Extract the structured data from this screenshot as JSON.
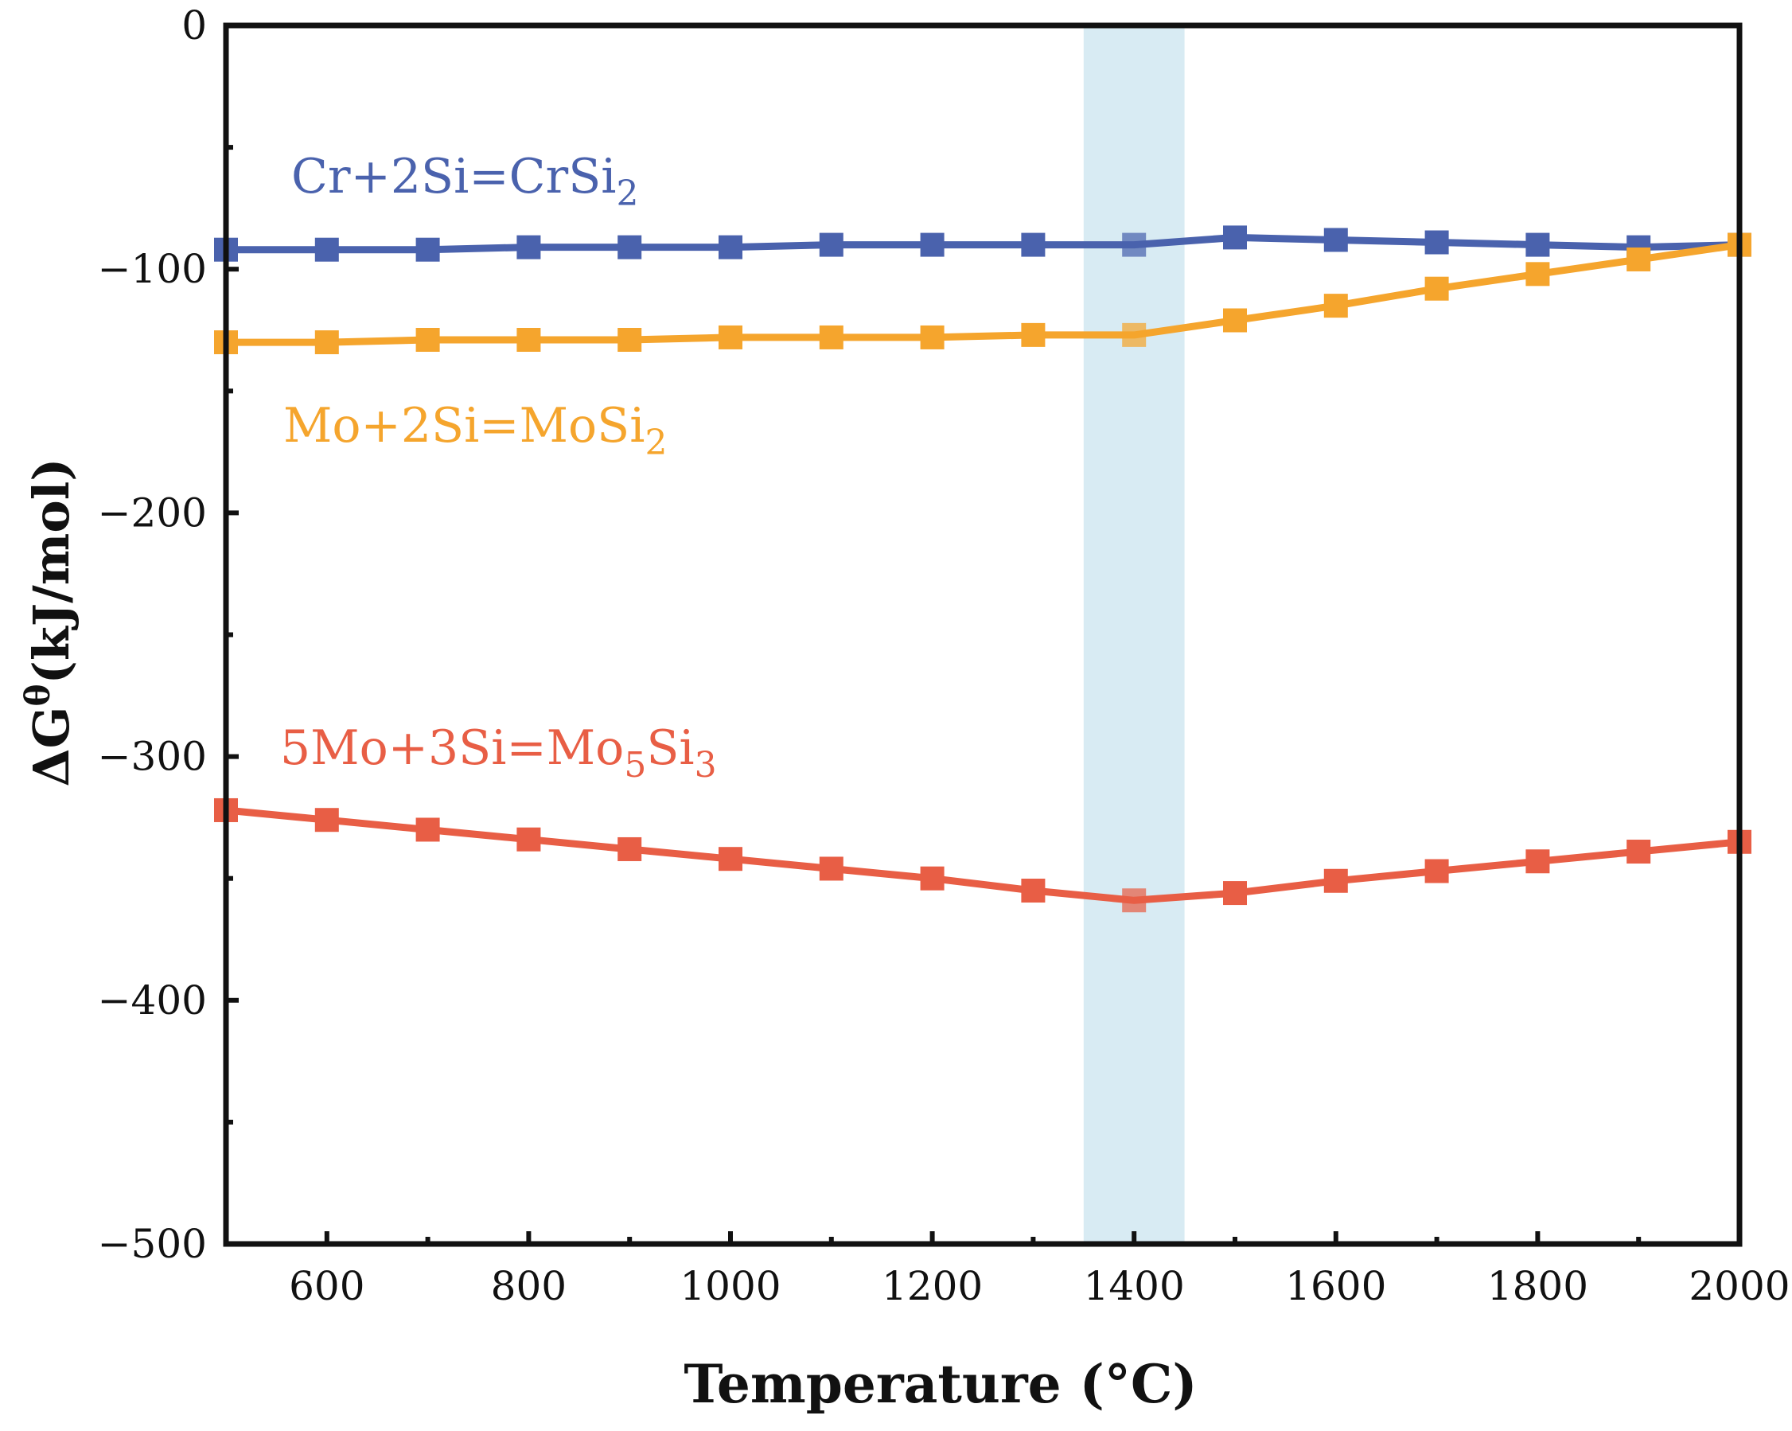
{
  "chart_data": {
    "type": "line",
    "xlabel": "Temperature (°C)",
    "ylabel": "ΔG",
    "ylabel_superscript": "θ",
    "ylabel_unit": "(kJ/mol)",
    "xlim": [
      500,
      2000
    ],
    "ylim": [
      -500,
      0
    ],
    "xticks": [
      600,
      800,
      1000,
      1200,
      1400,
      1600,
      1800,
      2000
    ],
    "xtick_labels": [
      "600",
      "800",
      "1000",
      "1200",
      "1400",
      "1600",
      "1800",
      "2000"
    ],
    "yticks": [
      0,
      -100,
      -200,
      -300,
      -400,
      -500
    ],
    "ytick_labels": [
      "0",
      "−100",
      "−200",
      "−300",
      "−400",
      "−500"
    ],
    "highlight_band": {
      "x_from": 1350,
      "x_to": 1450,
      "color": "#d8ebf3"
    },
    "x": [
      500,
      600,
      700,
      800,
      900,
      1000,
      1100,
      1200,
      1300,
      1400,
      1500,
      1600,
      1700,
      1800,
      1900,
      2000
    ],
    "series": [
      {
        "name": "Cr+2Si=CrSi2",
        "label_main": "Cr+2Si=CrSi",
        "label_sub": "2",
        "label_tail": "",
        "label_tail_sub": "",
        "color": "#4a62ad",
        "values": [
          -92,
          -92,
          -92,
          -91,
          -91,
          -91,
          -90,
          -90,
          -90,
          -90,
          -87,
          -88,
          -89,
          -90,
          -91,
          -90
        ]
      },
      {
        "name": "Mo+2Si=MoSi2",
        "label_main": "Mo+2Si=MoSi",
        "label_sub": "2",
        "label_tail": "",
        "label_tail_sub": "",
        "color": "#f5a52d",
        "values": [
          -130,
          -130,
          -129,
          -129,
          -129,
          -128,
          -128,
          -128,
          -127,
          -127,
          -121,
          -115,
          -108,
          -102,
          -96,
          -90
        ]
      },
      {
        "name": "5Mo+3Si=Mo5Si3",
        "label_main": "5Mo+3Si=Mo",
        "label_sub": "5",
        "label_tail": "Si",
        "label_tail_sub": "3",
        "color": "#e85e45",
        "values": [
          -322,
          -326,
          -330,
          -334,
          -338,
          -342,
          -346,
          -350,
          -355,
          -359,
          -356,
          -351,
          -347,
          -343,
          -339,
          -335
        ]
      }
    ]
  }
}
